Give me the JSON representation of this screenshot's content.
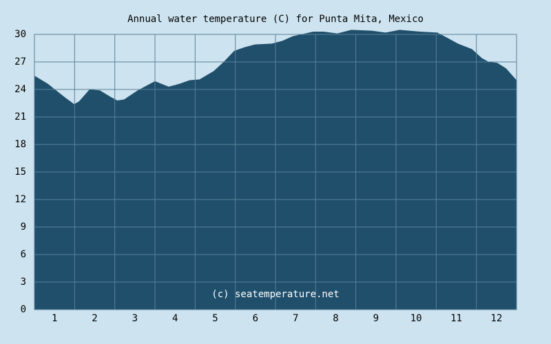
{
  "chart_data": {
    "type": "area",
    "title": "Annual water temperature (C) for Punta Mita, Mexico",
    "annotation": "(c) seatemperature.net",
    "x": [
      0.5,
      0.84,
      1.01,
      1.27,
      1.49,
      1.61,
      1.87,
      2.13,
      2.39,
      2.56,
      2.73,
      3.07,
      3.5,
      3.84,
      4.1,
      4.36,
      4.61,
      4.96,
      5.21,
      5.47,
      5.73,
      5.99,
      6.41,
      6.67,
      6.93,
      7.44,
      7.7,
      8.04,
      8.39,
      8.9,
      9.24,
      9.59,
      10.1,
      10.53,
      10.79,
      11.04,
      11.39,
      11.64,
      11.81,
      12.02,
      12.24,
      12.5
    ],
    "values": [
      25.5,
      24.6,
      24.0,
      23.1,
      22.4,
      22.7,
      24.0,
      23.9,
      23.2,
      22.8,
      22.9,
      23.9,
      24.9,
      24.3,
      24.6,
      25.0,
      25.1,
      26.0,
      27.0,
      28.2,
      28.6,
      28.9,
      29.0,
      29.3,
      29.8,
      30.3,
      30.3,
      30.1,
      30.5,
      30.4,
      30.2,
      30.5,
      30.3,
      30.2,
      29.6,
      29.0,
      28.4,
      27.4,
      27.0,
      26.9,
      26.3,
      25.0
    ],
    "color": "#1f4f6b",
    "xlim": [
      0.5,
      12.5
    ],
    "xticks": [
      1,
      2,
      3,
      4,
      5,
      6,
      7,
      8,
      9,
      10,
      11,
      12
    ],
    "ylim": [
      0,
      30
    ],
    "yticks": [
      0,
      3,
      6,
      9,
      12,
      15,
      18,
      21,
      24,
      27,
      30
    ],
    "grid": true
  }
}
